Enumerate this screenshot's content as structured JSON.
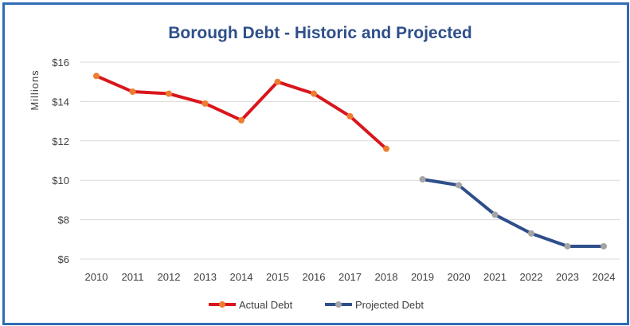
{
  "chart_data": {
    "type": "line",
    "title": "Borough Debt - Historic and Projected",
    "ylabel": "Millions",
    "xlabel": "",
    "ylim": [
      6,
      16
    ],
    "yticks": [
      6,
      8,
      10,
      12,
      14,
      16
    ],
    "ytick_labels": [
      "$6",
      "$8",
      "$10",
      "$12",
      "$14",
      "$16"
    ],
    "categories": [
      "2010",
      "2011",
      "2012",
      "2013",
      "2014",
      "2015",
      "2016",
      "2017",
      "2018",
      "2019",
      "2020",
      "2021",
      "2022",
      "2023",
      "2024"
    ],
    "grid": true,
    "legend_position": "bottom",
    "series": [
      {
        "name": "Actual Debt",
        "line_color": "#d9161c",
        "marker_color": "#ed7d31",
        "values": [
          15.3,
          14.5,
          14.4,
          13.9,
          13.05,
          15.0,
          14.4,
          13.25,
          11.6,
          null,
          null,
          null,
          null,
          null,
          null
        ]
      },
      {
        "name": "Projected Debt",
        "line_color": "#2e4f8a",
        "marker_color": "#a5a5a5",
        "values": [
          null,
          null,
          null,
          null,
          null,
          null,
          null,
          null,
          null,
          10.05,
          9.75,
          8.25,
          7.3,
          6.65,
          6.65
        ]
      }
    ]
  }
}
